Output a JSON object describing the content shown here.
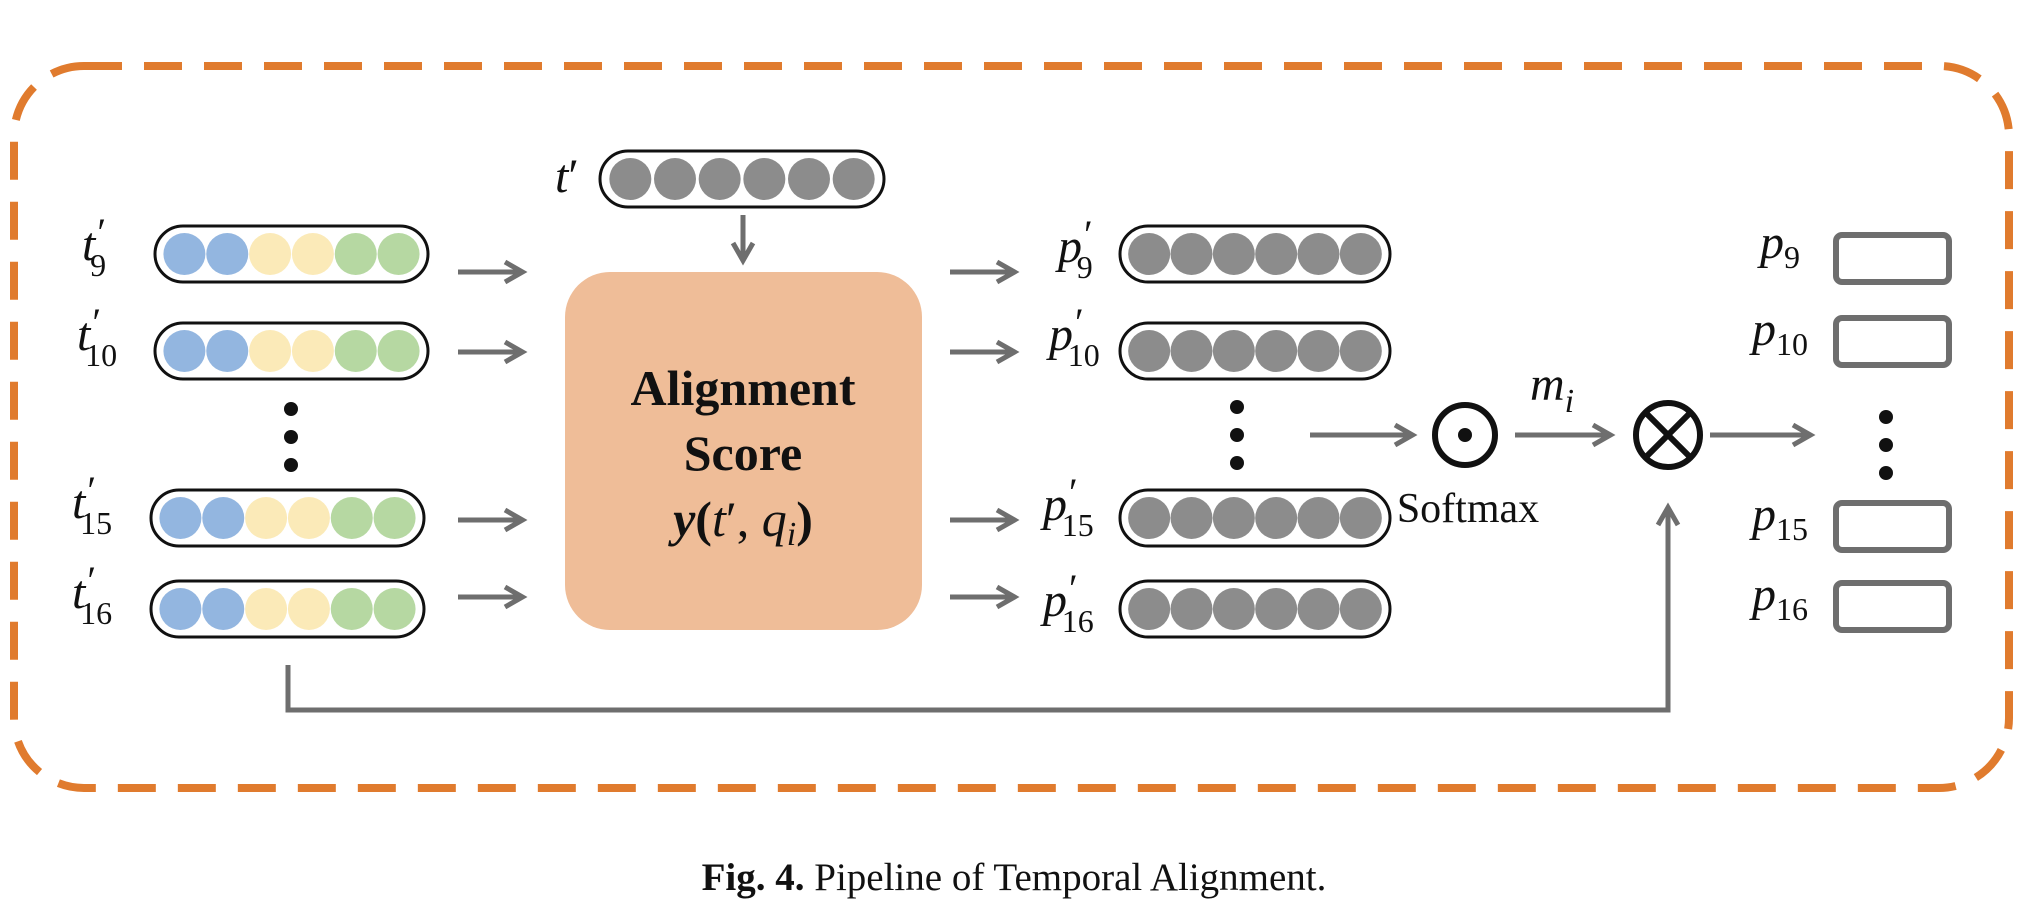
{
  "figure": {
    "caption_prefix": "Fig. 4.",
    "caption_text": " Pipeline of Temporal Alignment."
  },
  "query_token": {
    "base": "t",
    "prime": "′"
  },
  "alignment_block": {
    "line1": "Alignment",
    "line2": "Score",
    "formula": {
      "y": "y",
      "open": "(",
      "t": "t",
      "prime": "′",
      "comma": ", ",
      "q": "q",
      "sub": "i",
      "close": ")"
    }
  },
  "inputs": [
    {
      "base": "t",
      "sub": "9"
    },
    {
      "base": "t",
      "sub": "10"
    },
    {
      "base": "t",
      "sub": "15"
    },
    {
      "base": "t",
      "sub": "16"
    }
  ],
  "aligned": [
    {
      "base": "p",
      "sub": "9"
    },
    {
      "base": "p",
      "sub": "10"
    },
    {
      "base": "p",
      "sub": "15"
    },
    {
      "base": "p",
      "sub": "16"
    }
  ],
  "outputs": [
    {
      "base": "p",
      "sub": "9"
    },
    {
      "base": "p",
      "sub": "10"
    },
    {
      "base": "p",
      "sub": "15"
    },
    {
      "base": "p",
      "sub": "16"
    }
  ],
  "ops": {
    "softmax_label": "Softmax",
    "mask": {
      "base": "m",
      "sub": "i"
    }
  },
  "colors": {
    "border": "#e07b2e",
    "block": "#efbd98",
    "arrow": "#6e6e6e",
    "blue": "#93b6e0",
    "yellow": "#fbeab8",
    "green": "#b6d8a2",
    "gray": "#8c8c8c"
  }
}
